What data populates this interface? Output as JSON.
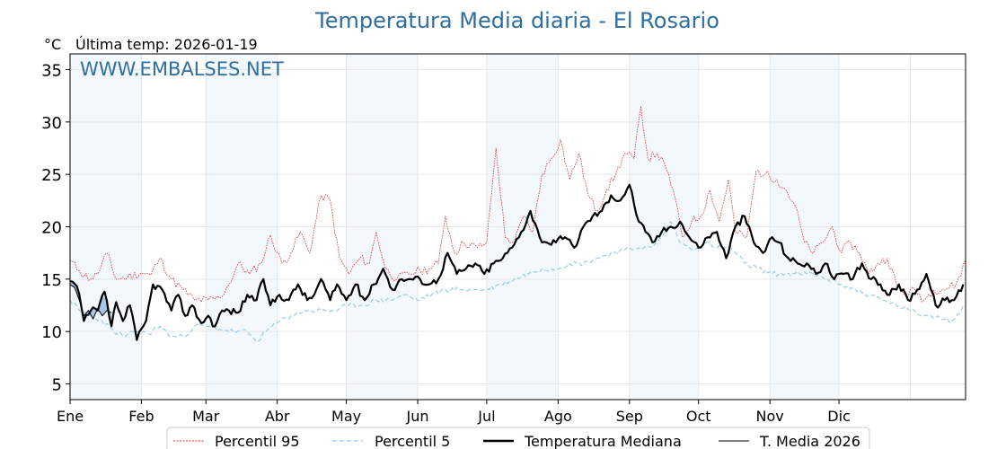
{
  "chart_data": {
    "type": "line",
    "title": "Temperatura Media diaria - El Rosario",
    "unit_label": "°C",
    "subtitle": "Última temp: 2026-01-19",
    "watermark": "WWW.EMBALSES.NET",
    "ylim": [
      3.5,
      36.5
    ],
    "yticks": [
      5,
      10,
      15,
      20,
      25,
      30,
      35
    ],
    "months": [
      "Ene",
      "Feb",
      "Mar",
      "Abr",
      "May",
      "Jun",
      "Jul",
      "Ago",
      "Sep",
      "Oct",
      "Nov",
      "Dic"
    ],
    "grid": true,
    "legend_position": "bottom",
    "colors": {
      "title": "#2f6f9f",
      "watermark": "#2f6f9f",
      "p95": "#e03030",
      "p5": "#8ecae6",
      "median": "#000000",
      "current": "#000000",
      "band": "#f3f8fc",
      "fill": "#6a9fd4"
    },
    "series": [
      {
        "name": "Percentil 95",
        "style": "dotted",
        "anchors": [
          [
            1,
            16.8
          ],
          [
            5,
            15.8
          ],
          [
            10,
            15.0
          ],
          [
            13,
            15.5
          ],
          [
            17,
            17.5
          ],
          [
            21,
            15.0
          ],
          [
            26,
            15.2
          ],
          [
            32,
            15.6
          ],
          [
            36,
            15.4
          ],
          [
            40,
            17.0
          ],
          [
            45,
            15.0
          ],
          [
            50,
            14.0
          ],
          [
            55,
            13.0
          ],
          [
            61,
            13.0
          ],
          [
            66,
            13.2
          ],
          [
            70,
            14.5
          ],
          [
            74,
            16.5
          ],
          [
            79,
            15.5
          ],
          [
            84,
            16.5
          ],
          [
            88,
            19.2
          ],
          [
            93,
            16.5
          ],
          [
            97,
            17.5
          ],
          [
            101,
            19.5
          ],
          [
            105,
            17.5
          ],
          [
            110,
            23.0
          ],
          [
            114,
            22.5
          ],
          [
            118,
            17.0
          ],
          [
            122,
            15.5
          ],
          [
            127,
            17.0
          ],
          [
            131,
            16.5
          ],
          [
            134,
            19.5
          ],
          [
            138,
            16.0
          ],
          [
            143,
            15.0
          ],
          [
            148,
            15.5
          ],
          [
            153,
            15.8
          ],
          [
            157,
            16.0
          ],
          [
            161,
            16.5
          ],
          [
            164,
            21.0
          ],
          [
            168,
            17.5
          ],
          [
            172,
            18.5
          ],
          [
            178,
            18.0
          ],
          [
            182,
            18.5
          ],
          [
            186,
            27.5
          ],
          [
            190,
            19.0
          ],
          [
            194,
            18.5
          ],
          [
            198,
            21.0
          ],
          [
            202,
            19.5
          ],
          [
            206,
            25.0
          ],
          [
            210,
            26.5
          ],
          [
            214,
            28.3
          ],
          [
            218,
            24.5
          ],
          [
            222,
            27.0
          ],
          [
            226,
            23.0
          ],
          [
            230,
            21.5
          ],
          [
            234,
            23.5
          ],
          [
            238,
            25.0
          ],
          [
            242,
            27.0
          ],
          [
            246,
            26.5
          ],
          [
            249,
            31.5
          ],
          [
            252,
            26.5
          ],
          [
            256,
            27.0
          ],
          [
            260,
            25.5
          ],
          [
            263,
            23.5
          ],
          [
            267,
            19.0
          ],
          [
            271,
            20.5
          ],
          [
            275,
            21.0
          ],
          [
            279,
            23.5
          ],
          [
            283,
            20.5
          ],
          [
            287,
            24.5
          ],
          [
            290,
            19.5
          ],
          [
            295,
            19.0
          ],
          [
            299,
            25.3
          ],
          [
            303,
            25.0
          ],
          [
            308,
            24.5
          ],
          [
            312,
            23.5
          ],
          [
            316,
            22.0
          ],
          [
            320,
            18.5
          ],
          [
            324,
            17.5
          ],
          [
            328,
            18.5
          ],
          [
            332,
            20.0
          ],
          [
            336,
            17.5
          ],
          [
            340,
            18.5
          ],
          [
            344,
            17.5
          ],
          [
            348,
            15.5
          ],
          [
            352,
            16.5
          ],
          [
            356,
            17.0
          ],
          [
            360,
            14.5
          ],
          [
            364,
            13.5
          ],
          [
            368,
            14.0
          ],
          [
            372,
            13.0
          ],
          [
            376,
            14.0
          ],
          [
            380,
            14.0
          ],
          [
            386,
            14.5
          ],
          [
            390,
            16.8
          ]
        ]
      },
      {
        "name": "Percentil 5",
        "style": "dashed",
        "anchors": [
          [
            1,
            13.0
          ],
          [
            5,
            12.0
          ],
          [
            10,
            11.5
          ],
          [
            15,
            11.0
          ],
          [
            20,
            10.0
          ],
          [
            25,
            9.5
          ],
          [
            30,
            10.0
          ],
          [
            35,
            9.8
          ],
          [
            40,
            10.5
          ],
          [
            45,
            9.5
          ],
          [
            50,
            9.5
          ],
          [
            55,
            10.5
          ],
          [
            60,
            10.5
          ],
          [
            66,
            10.2
          ],
          [
            72,
            10.0
          ],
          [
            78,
            10.0
          ],
          [
            82,
            9.0
          ],
          [
            86,
            10.0
          ],
          [
            92,
            11.0
          ],
          [
            97,
            11.5
          ],
          [
            103,
            12.0
          ],
          [
            110,
            12.0
          ],
          [
            116,
            12.0
          ],
          [
            122,
            12.5
          ],
          [
            128,
            12.5
          ],
          [
            134,
            13.0
          ],
          [
            140,
            13.0
          ],
          [
            146,
            13.5
          ],
          [
            152,
            13.0
          ],
          [
            158,
            13.5
          ],
          [
            164,
            14.0
          ],
          [
            170,
            14.0
          ],
          [
            176,
            14.0
          ],
          [
            182,
            14.0
          ],
          [
            188,
            14.5
          ],
          [
            194,
            15.0
          ],
          [
            200,
            15.5
          ],
          [
            206,
            16.0
          ],
          [
            212,
            16.0
          ],
          [
            218,
            16.5
          ],
          [
            224,
            16.5
          ],
          [
            230,
            17.0
          ],
          [
            236,
            17.5
          ],
          [
            242,
            17.8
          ],
          [
            248,
            18.0
          ],
          [
            254,
            18.0
          ],
          [
            258,
            19.0
          ],
          [
            262,
            20.5
          ],
          [
            266,
            18.5
          ],
          [
            270,
            18.0
          ],
          [
            274,
            18.0
          ],
          [
            278,
            18.5
          ],
          [
            282,
            18.0
          ],
          [
            288,
            18.0
          ],
          [
            294,
            16.5
          ],
          [
            300,
            16.0
          ],
          [
            306,
            15.5
          ],
          [
            312,
            15.5
          ],
          [
            318,
            15.5
          ],
          [
            324,
            15.5
          ],
          [
            330,
            15.0
          ],
          [
            336,
            14.5
          ],
          [
            342,
            14.0
          ],
          [
            348,
            13.5
          ],
          [
            354,
            13.0
          ],
          [
            360,
            12.5
          ],
          [
            366,
            12.0
          ],
          [
            372,
            11.5
          ],
          [
            378,
            11.5
          ],
          [
            384,
            11.0
          ],
          [
            390,
            12.5
          ]
        ]
      },
      {
        "name": "Temperatura Mediana",
        "style": "solid-thick",
        "anchors": [
          [
            1,
            14.8
          ],
          [
            4,
            14.3
          ],
          [
            7,
            11.0
          ],
          [
            10,
            12.0
          ],
          [
            13,
            12.0
          ],
          [
            16,
            13.8
          ],
          [
            19,
            10.5
          ],
          [
            21,
            12.8
          ],
          [
            24,
            11.0
          ],
          [
            27,
            12.5
          ],
          [
            30,
            9.2
          ],
          [
            34,
            11.0
          ],
          [
            37,
            14.5
          ],
          [
            41,
            14.0
          ],
          [
            45,
            12.0
          ],
          [
            48,
            13.5
          ],
          [
            51,
            11.5
          ],
          [
            54,
            12.5
          ],
          [
            58,
            10.8
          ],
          [
            61,
            11.5
          ],
          [
            64,
            10.5
          ],
          [
            67,
            12.0
          ],
          [
            70,
            12.0
          ],
          [
            74,
            11.8
          ],
          [
            78,
            13.5
          ],
          [
            82,
            13.0
          ],
          [
            85,
            15.0
          ],
          [
            88,
            12.5
          ],
          [
            92,
            13.5
          ],
          [
            96,
            13.0
          ],
          [
            100,
            14.5
          ],
          [
            104,
            13.0
          ],
          [
            107,
            13.5
          ],
          [
            110,
            15.0
          ],
          [
            114,
            13.0
          ],
          [
            117,
            14.5
          ],
          [
            121,
            13.0
          ],
          [
            125,
            14.5
          ],
          [
            129,
            13.0
          ],
          [
            133,
            14.5
          ],
          [
            137,
            16.0
          ],
          [
            141,
            14.0
          ],
          [
            145,
            15.0
          ],
          [
            149,
            15.0
          ],
          [
            153,
            15.0
          ],
          [
            157,
            14.5
          ],
          [
            161,
            15.0
          ],
          [
            165,
            17.5
          ],
          [
            169,
            15.5
          ],
          [
            173,
            16.0
          ],
          [
            177,
            16.5
          ],
          [
            181,
            15.5
          ],
          [
            185,
            16.5
          ],
          [
            189,
            17.0
          ],
          [
            193,
            18.0
          ],
          [
            197,
            19.5
          ],
          [
            201,
            21.5
          ],
          [
            205,
            19.0
          ],
          [
            208,
            18.5
          ],
          [
            212,
            18.5
          ],
          [
            216,
            19.0
          ],
          [
            220,
            18.0
          ],
          [
            224,
            20.0
          ],
          [
            228,
            21.0
          ],
          [
            232,
            21.5
          ],
          [
            236,
            23.0
          ],
          [
            240,
            22.5
          ],
          [
            244,
            24.0
          ],
          [
            248,
            20.5
          ],
          [
            251,
            19.5
          ],
          [
            254,
            18.5
          ],
          [
            258,
            19.5
          ],
          [
            262,
            20.0
          ],
          [
            266,
            20.5
          ],
          [
            270,
            19.0
          ],
          [
            274,
            18.0
          ],
          [
            278,
            19.0
          ],
          [
            282,
            19.5
          ],
          [
            286,
            17.0
          ],
          [
            290,
            20.0
          ],
          [
            294,
            21.0
          ],
          [
            298,
            18.5
          ],
          [
            302,
            17.5
          ],
          [
            306,
            19.0
          ],
          [
            309,
            18.5
          ],
          [
            313,
            17.0
          ],
          [
            317,
            16.5
          ],
          [
            321,
            16.5
          ],
          [
            325,
            15.5
          ],
          [
            329,
            16.5
          ],
          [
            333,
            15.0
          ],
          [
            337,
            15.5
          ],
          [
            341,
            15.0
          ],
          [
            345,
            16.5
          ],
          [
            349,
            15.0
          ],
          [
            353,
            14.5
          ],
          [
            357,
            13.5
          ],
          [
            361,
            14.5
          ],
          [
            365,
            13.0
          ],
          [
            369,
            14.0
          ],
          [
            373,
            15.5
          ],
          [
            377,
            12.5
          ],
          [
            381,
            13.0
          ],
          [
            385,
            13.0
          ],
          [
            389,
            14.5
          ]
        ]
      },
      {
        "name": "T. Media 2026",
        "style": "solid-thin",
        "anchors": [
          [
            1,
            14.5
          ],
          [
            3,
            14.2
          ],
          [
            5,
            13.0
          ],
          [
            7,
            11.5
          ],
          [
            9,
            12.0
          ],
          [
            11,
            11.2
          ],
          [
            13,
            12.2
          ],
          [
            15,
            11.5
          ],
          [
            17,
            12.0
          ],
          [
            19,
            11.8
          ]
        ]
      }
    ]
  }
}
